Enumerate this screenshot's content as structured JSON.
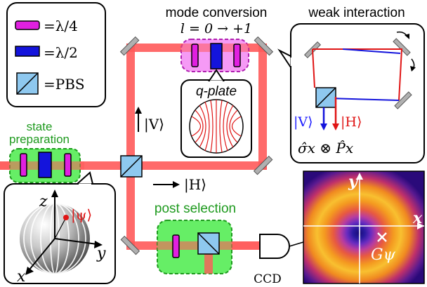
{
  "legend": {
    "items": [
      {
        "element": "quarter-wave-plate",
        "label": "=λ/4",
        "color": "#e020e0"
      },
      {
        "element": "half-wave-plate",
        "label": "=λ/2",
        "color": "#1414dc"
      },
      {
        "element": "polarizing-beam-splitter",
        "label": "=PBS",
        "color": "#8ec8ef"
      }
    ]
  },
  "labels": {
    "mode_conversion": "mode conversion",
    "mode_formula": "l = 0 → +1",
    "weak_interaction": "weak interaction",
    "q_plate": "q-plate",
    "state_preparation_line1": "state",
    "state_preparation_line2": "preparation",
    "post_selection": "post selection",
    "ket_v_main": "|V⟩",
    "ket_h_main": "|H⟩",
    "ket_v_inset": "|V⟩",
    "ket_h_inset": "|H⟩",
    "operator": "σ̂x ⊗ P̂x",
    "ccd": "CCD",
    "bloch_state": "|ψ⟩",
    "axis_z": "z",
    "axis_y": "y",
    "axis_x": "x",
    "ccd_axis_x": "x",
    "ccd_axis_y": "y",
    "ccd_center": "Gψ"
  },
  "colors": {
    "beam": "#ff5a5a",
    "quarter_wave": "#e020e0",
    "half_wave": "#1414dc",
    "pbs": "#8ec8ef",
    "mirror": "#b0b0b0",
    "prep_region": "#66ee66",
    "mode_region": "#f59af5",
    "green_text": "#1e9a1e",
    "ket_v": "#1a1aff",
    "ket_h": "#e01515"
  }
}
